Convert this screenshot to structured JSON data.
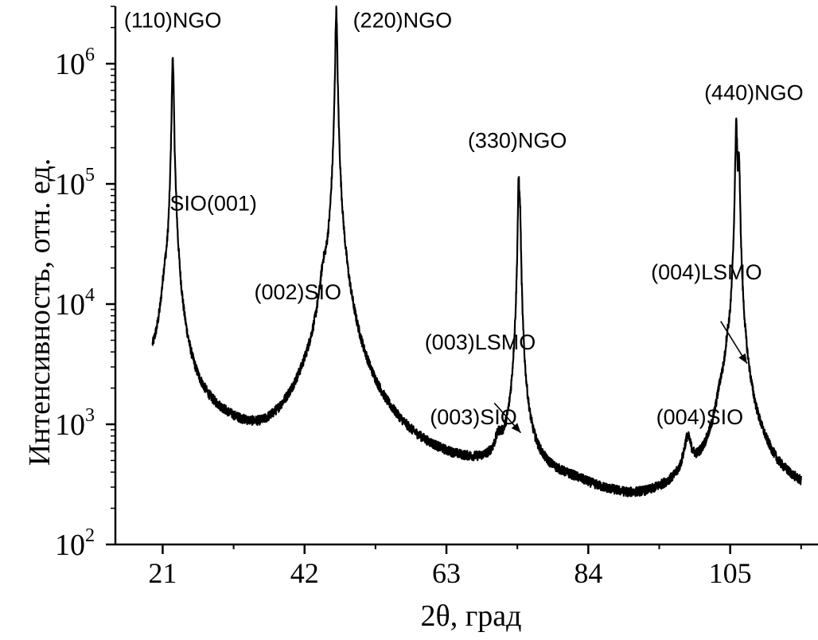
{
  "chart_data": {
    "type": "line",
    "title": "",
    "xlabel": "2θ, град",
    "ylabel": "Интенсивность, отн. ед.",
    "xlim": [
      14,
      118
    ],
    "ylim": [
      100,
      3000000
    ],
    "y_scale": "log",
    "x_ticks": [
      {
        "value": 21,
        "label": "21"
      },
      {
        "value": 42,
        "label": "42"
      },
      {
        "value": 63,
        "label": "63"
      },
      {
        "value": 84,
        "label": "84"
      },
      {
        "value": 105,
        "label": "105"
      }
    ],
    "y_ticks": [
      {
        "value": 100,
        "base": "10",
        "exp": "2"
      },
      {
        "value": 1000,
        "base": "10",
        "exp": "3"
      },
      {
        "value": 10000,
        "base": "10",
        "exp": "4"
      },
      {
        "value": 100000,
        "base": "10",
        "exp": "5"
      },
      {
        "value": 1000000,
        "base": "10",
        "exp": "6"
      }
    ],
    "grid": false,
    "legend": "none",
    "series": [
      {
        "color": "#000000",
        "background": 1000,
        "x_range": [
          19.5,
          115.5
        ],
        "background_points": [
          [
            19.5,
            1900
          ],
          [
            20.0,
            1850
          ],
          [
            23.2,
            1600
          ],
          [
            24.0,
            1150
          ],
          [
            26.0,
            950
          ],
          [
            30.0,
            740
          ],
          [
            33.0,
            560
          ],
          [
            36.0,
            410
          ],
          [
            38.0,
            390
          ],
          [
            40.0,
            420
          ],
          [
            42.0,
            480
          ],
          [
            43.5,
            560
          ],
          [
            49.0,
            700
          ],
          [
            50.0,
            560
          ],
          [
            54.0,
            430
          ],
          [
            58.0,
            360
          ],
          [
            63.0,
            330
          ],
          [
            68.0,
            320
          ],
          [
            72.0,
            320
          ],
          [
            73.5,
            340
          ],
          [
            75.5,
            340
          ],
          [
            78.0,
            300
          ],
          [
            82.0,
            270
          ],
          [
            86.0,
            220
          ],
          [
            90.0,
            190
          ],
          [
            93.0,
            190
          ],
          [
            96.0,
            210
          ],
          [
            100.0,
            230
          ],
          [
            103.0,
            270
          ],
          [
            108.0,
            380
          ],
          [
            110.0,
            320
          ],
          [
            112.0,
            260
          ],
          [
            115.5,
            230
          ]
        ],
        "peaks": [
          {
            "x": 21.3,
            "height": 6700,
            "width": 0.45
          },
          {
            "x": 22.5,
            "height": 1140000,
            "width": 0.13
          },
          {
            "x": 22.5,
            "height": 2500,
            "width": 0.8
          },
          {
            "x": 44.8,
            "height": 7500,
            "width": 0.5
          },
          {
            "x": 46.7,
            "height": 2800000,
            "width": 0.13
          },
          {
            "x": 46.6,
            "height": 9000,
            "width": 1.0
          },
          {
            "x": 46.9,
            "height": 2000,
            "width": 1.9
          },
          {
            "x": 70.7,
            "height": 200,
            "width": 0.55
          },
          {
            "x": 73.2,
            "height": 650,
            "width": 0.35
          },
          {
            "x": 73.7,
            "height": 105000,
            "width": 0.12
          },
          {
            "x": 73.9,
            "height": 40000,
            "width": 0.12
          },
          {
            "x": 98.7,
            "height": 380,
            "width": 0.6
          },
          {
            "x": 103.6,
            "height": 600,
            "width": 0.7
          },
          {
            "x": 104.6,
            "height": 1400,
            "width": 0.35
          },
          {
            "x": 105.9,
            "height": 330000,
            "width": 0.13
          },
          {
            "x": 106.3,
            "height": 150000,
            "width": 0.13
          }
        ]
      }
    ],
    "annotations": [
      {
        "text": "(110)NGO",
        "x": 22.5,
        "y": 2000000
      },
      {
        "text": "SIO(001)",
        "x": 28.5,
        "y": 60000
      },
      {
        "text": "(220)NGO",
        "x": 56.5,
        "y": 2000000
      },
      {
        "text": "(002)SIO",
        "x": 41.0,
        "y": 11000
      },
      {
        "text": "(003)LSMO",
        "x": 68.0,
        "y": 4200
      },
      {
        "text": "(003)SIO",
        "x": 67.0,
        "y": 1000
      },
      {
        "text": "(330)NGO",
        "x": 73.5,
        "y": 200000
      },
      {
        "text": "(004)SIO",
        "x": 100.5,
        "y": 1000
      },
      {
        "text": "(004)LSMO",
        "x": 101.5,
        "y": 16000
      },
      {
        "text": "(440)NGO",
        "x": 108.5,
        "y": 500000
      }
    ],
    "arrows": [
      {
        "from": [
          70.1,
          1500
        ],
        "to": [
          74.0,
          850
        ]
      },
      {
        "from": [
          103.6,
          7200
        ],
        "to": [
          107.5,
          3200
        ]
      }
    ]
  }
}
